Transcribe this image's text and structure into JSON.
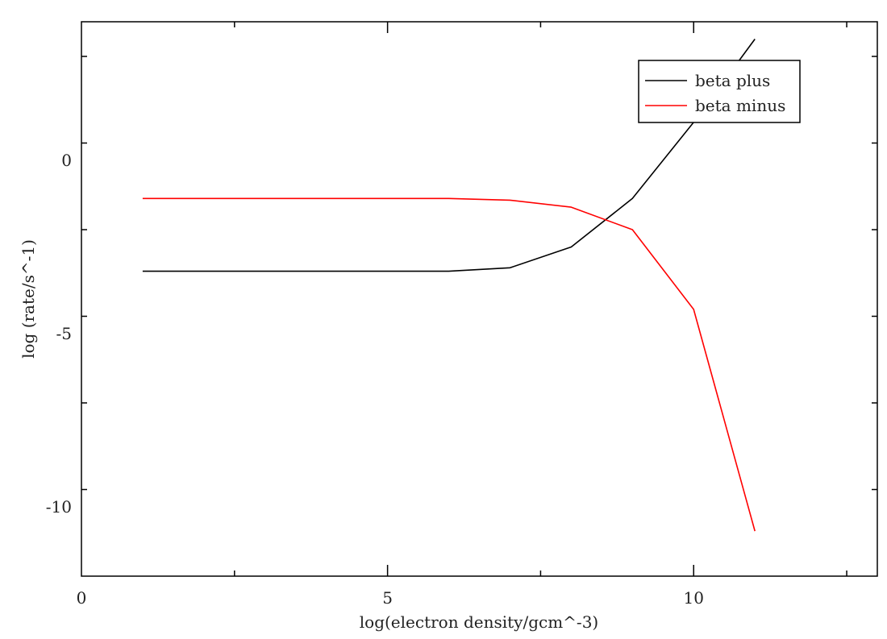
{
  "chart_data": {
    "type": "line",
    "title": "",
    "xlabel": "log(electron density/gcm^-3)",
    "ylabel": "log (rate/s^-1)",
    "xlim": [
      0,
      13
    ],
    "ylim": [
      -12,
      4
    ],
    "x_ticks": [
      0,
      5,
      10
    ],
    "x_tick_labels": [
      "0",
      "5",
      "10"
    ],
    "y_ticks": [
      0,
      -5,
      -10
    ],
    "y_tick_labels": [
      "0",
      "-5",
      "-10"
    ],
    "grid": false,
    "legend_position": "top-right",
    "series": [
      {
        "name": "beta plus",
        "color": "#000000",
        "x": [
          1,
          6,
          7,
          8,
          9,
          10,
          11
        ],
        "y": [
          -3.2,
          -3.2,
          -3.1,
          -2.5,
          -1.1,
          1.1,
          3.5
        ]
      },
      {
        "name": "beta minus",
        "color": "#ff0000",
        "x": [
          1,
          6,
          7,
          8,
          9,
          10,
          11
        ],
        "y": [
          -1.1,
          -1.1,
          -1.15,
          -1.35,
          -2.0,
          -4.3,
          -10.7
        ]
      }
    ]
  }
}
